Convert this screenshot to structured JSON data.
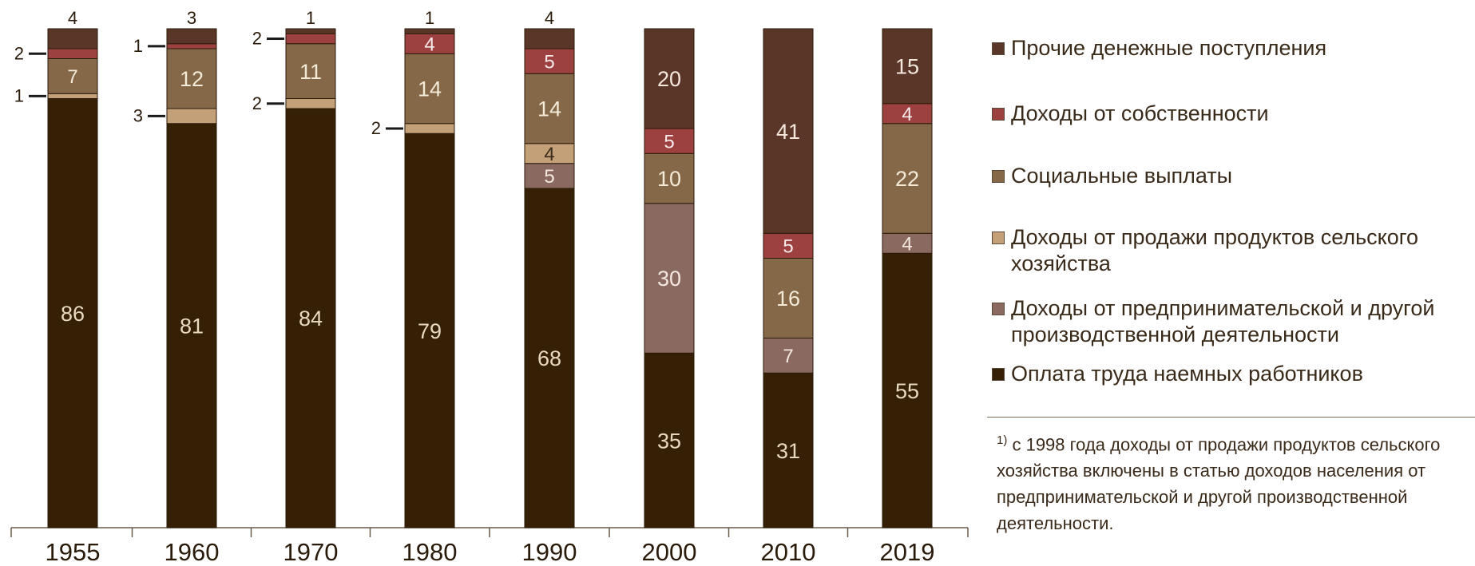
{
  "colors": {
    "Прочие денежные поступления": "#5a3628",
    "Доходы от собственности": "#9c4040",
    "Социальные выплаты": "#846848",
    "Доходы от продажи продуктов сельского хозяйства": "#c4a078",
    "Доходы от предпринимательской и другой производственной деятельности": "#8a6a60",
    "Оплата труда наемных работников": "#352005"
  },
  "legend": [
    "Прочие денежные поступления",
    "Доходы от собственности",
    "Социальные выплаты",
    "Доходы от продажи продуктов сельского хозяйства",
    "Доходы от предпринимательской и другой производственной деятельности",
    "Оплата труда наемных работников"
  ],
  "footnote": {
    "marker": "1)",
    "text": "с 1998 года доходы от продажи продуктов сельского хозяйства включены в статью доходов населения от предпринимательской и другой производственной деятельности."
  },
  "chart_data": {
    "type": "bar",
    "stacked": true,
    "categories": [
      "1955",
      "1960",
      "1970",
      "1980",
      "1990",
      "2000",
      "2010",
      "2019"
    ],
    "series": [
      {
        "name": "Оплата труда наемных работников",
        "values": [
          86,
          81,
          84,
          79,
          68,
          35,
          31,
          55
        ]
      },
      {
        "name": "Доходы от предпринимательской и другой производственной деятельности",
        "values": [
          0,
          0,
          0,
          0,
          5,
          30,
          7,
          4
        ]
      },
      {
        "name": "Доходы от продажи продуктов сельского хозяйства",
        "values": [
          1,
          3,
          2,
          2,
          4,
          0,
          0,
          0
        ]
      },
      {
        "name": "Социальные выплаты",
        "values": [
          7,
          12,
          11,
          14,
          14,
          10,
          16,
          22
        ]
      },
      {
        "name": "Доходы от собственности",
        "values": [
          2,
          1,
          2,
          4,
          5,
          5,
          5,
          4
        ]
      },
      {
        "name": "Прочие денежные поступления",
        "values": [
          4,
          3,
          1,
          1,
          4,
          20,
          41,
          15
        ]
      }
    ],
    "ylim": [
      0,
      100
    ],
    "legend_position": "right"
  }
}
